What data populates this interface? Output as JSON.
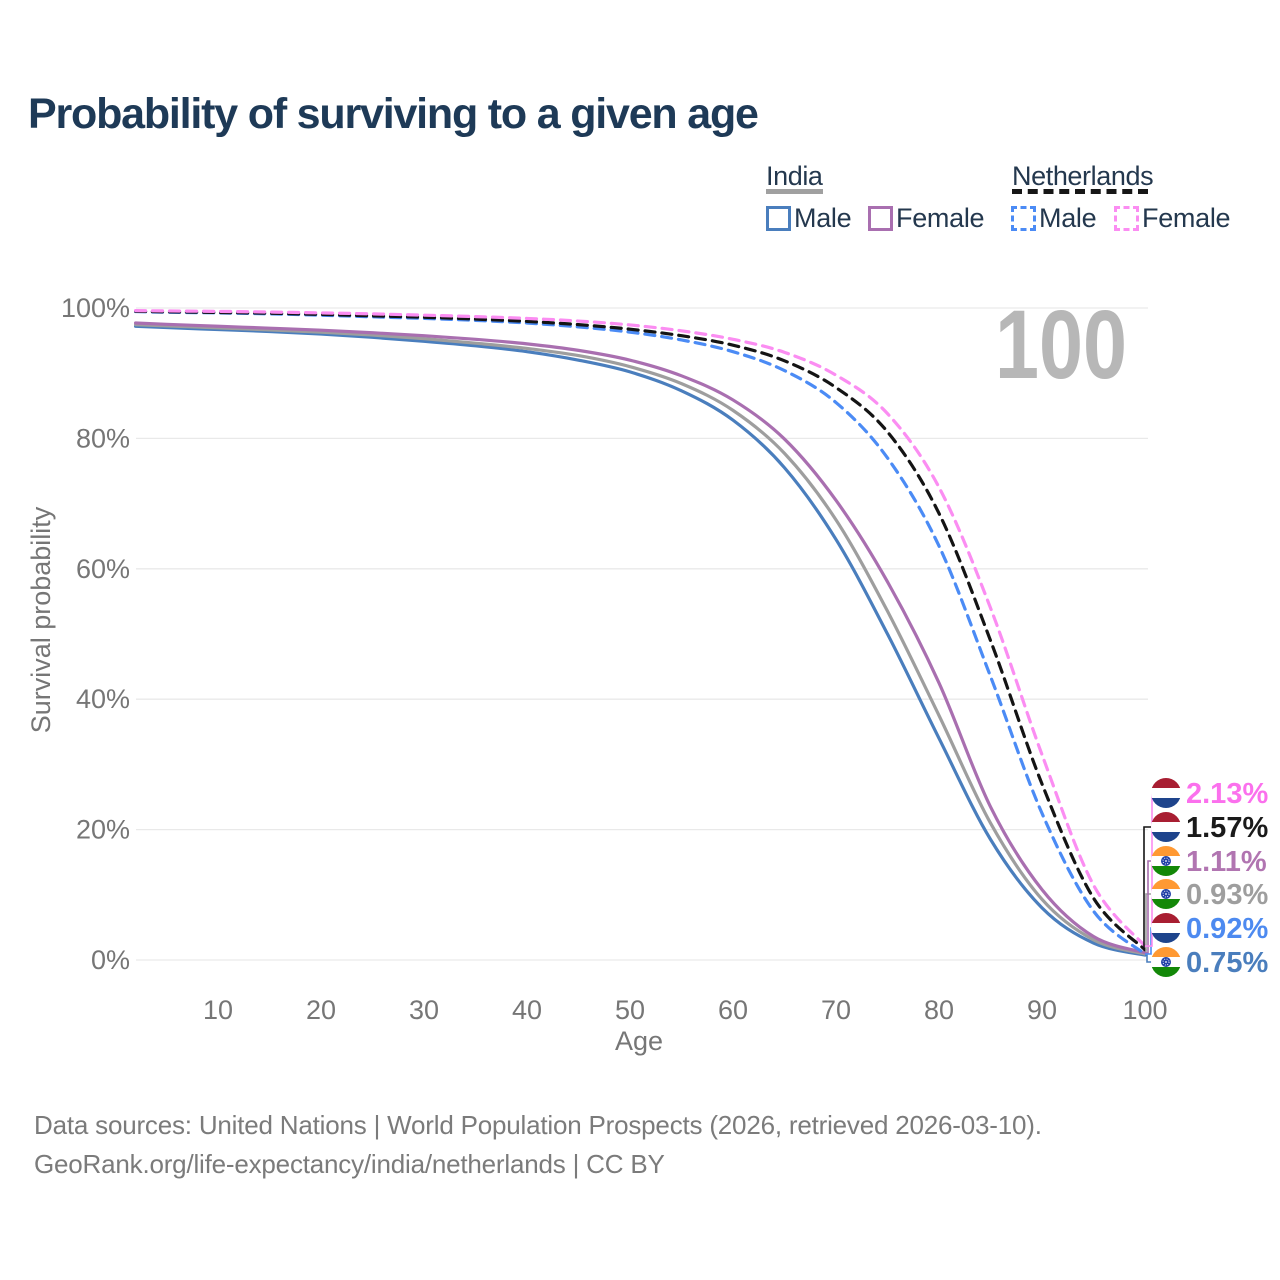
{
  "title": "Probability of surviving to a given age",
  "watermark_age": "100",
  "legend": {
    "groups": [
      {
        "label": "India",
        "line_style": "solid",
        "underline_color": "#a0a0a0",
        "items": [
          {
            "label": "Male",
            "color": "#4a7ebd"
          },
          {
            "label": "Female",
            "color": "#a96fb0"
          }
        ]
      },
      {
        "label": "Netherlands",
        "line_style": "dashed",
        "underline_color": "#161616",
        "items": [
          {
            "label": "Male",
            "color": "#4b8bf5"
          },
          {
            "label": "Female",
            "color": "#fb8df2"
          }
        ]
      }
    ]
  },
  "chart_data": {
    "type": "line",
    "title": "Probability of surviving to a given age",
    "xlabel": "Age",
    "ylabel": "Survival probability",
    "xlim": [
      0,
      100
    ],
    "ylim": [
      0,
      100
    ],
    "grid": "horizontal-only",
    "x_ticks": [
      10,
      20,
      30,
      40,
      50,
      60,
      70,
      80,
      90,
      100
    ],
    "y_ticks": [
      0,
      20,
      40,
      60,
      80,
      100
    ],
    "y_tick_labels": [
      "0%",
      "20%",
      "40%",
      "60%",
      "80%",
      "100%"
    ],
    "hover_age_indicator": "100",
    "ages": [
      2,
      5,
      10,
      15,
      20,
      25,
      30,
      35,
      40,
      45,
      50,
      55,
      60,
      65,
      70,
      75,
      80,
      85,
      90,
      95,
      100
    ],
    "series": [
      {
        "id": "india-male",
        "name": "India Male",
        "country": "India",
        "sex": "Male",
        "color": "#4a7ebd",
        "dash": false,
        "label_row": 5,
        "end_label": "0.75%",
        "end_label_color": "#4a7ebd",
        "end_value": 0.75,
        "values": [
          97.2,
          97.0,
          96.7,
          96.4,
          96.0,
          95.5,
          94.9,
          94.2,
          93.3,
          92.0,
          90.2,
          87.3,
          82.8,
          75.5,
          64.5,
          50.0,
          34.0,
          18.5,
          8.0,
          2.6,
          0.75
        ]
      },
      {
        "id": "india-all",
        "name": "India",
        "country": "India",
        "sex": "Both",
        "color": "#9e9e9e",
        "dash": false,
        "label_row": 3,
        "end_label": "0.93%",
        "end_label_color": "#9e9e9e",
        "end_value": 0.93,
        "values": [
          97.45,
          97.25,
          96.95,
          96.65,
          96.3,
          95.85,
          95.3,
          94.6,
          93.8,
          92.7,
          91.0,
          88.4,
          84.3,
          77.7,
          67.5,
          53.5,
          37.5,
          21.0,
          9.3,
          3.1,
          0.93
        ]
      },
      {
        "id": "india-female",
        "name": "India Female",
        "country": "India",
        "sex": "Female",
        "color": "#a96fb0",
        "dash": false,
        "label_row": 2,
        "end_label": "1.11%",
        "end_label_color": "#b175b1",
        "end_value": 1.11,
        "values": [
          97.7,
          97.5,
          97.2,
          96.9,
          96.6,
          96.2,
          95.75,
          95.2,
          94.5,
          93.5,
          92.0,
          89.6,
          85.9,
          79.9,
          70.5,
          58.0,
          42.5,
          23.5,
          10.8,
          3.6,
          1.11
        ]
      },
      {
        "id": "netherlands-male",
        "name": "Netherlands Male",
        "country": "Netherlands",
        "sex": "Male",
        "color": "#4b8bf5",
        "dash": true,
        "label_row": 4,
        "end_label": "0.92%",
        "end_label_color": "#4d8af0",
        "end_value": 0.92,
        "values": [
          99.45,
          99.35,
          99.25,
          99.1,
          98.9,
          98.65,
          98.4,
          98.1,
          97.7,
          97.1,
          96.3,
          95.1,
          93.3,
          90.4,
          85.5,
          77.0,
          63.5,
          43.5,
          22.5,
          7.5,
          0.92
        ]
      },
      {
        "id": "netherlands-all",
        "name": "Netherlands",
        "country": "Netherlands",
        "sex": "Both",
        "color": "#141414",
        "dash": true,
        "label_row": 1,
        "end_label": "1.57%",
        "end_label_color": "#1a1a1a",
        "end_value": 1.57,
        "values": [
          99.5,
          99.42,
          99.32,
          99.2,
          99.02,
          98.8,
          98.58,
          98.3,
          97.95,
          97.45,
          96.75,
          95.75,
          94.3,
          91.9,
          87.8,
          81.0,
          68.5,
          49.0,
          27.0,
          9.5,
          1.57
        ]
      },
      {
        "id": "netherlands-female",
        "name": "Netherlands Female",
        "country": "Netherlands",
        "sex": "Female",
        "color": "#fb8df2",
        "dash": true,
        "label_row": 0,
        "end_label": "2.13%",
        "end_label_color": "#fb70ed",
        "end_value": 2.13,
        "values": [
          99.6,
          99.55,
          99.48,
          99.38,
          99.25,
          99.1,
          98.9,
          98.68,
          98.4,
          98.0,
          97.4,
          96.5,
          95.2,
          93.2,
          89.7,
          83.8,
          72.5,
          54.0,
          31.5,
          11.5,
          2.13
        ]
      }
    ],
    "flags": {
      "India": {
        "top": "#FF9933",
        "middle": "#FFFFFF",
        "bottom": "#138808",
        "emblem": "#2242a8"
      },
      "Netherlands": {
        "top": "#A81E32",
        "middle": "#FFFFFF",
        "bottom": "#1E448C"
      }
    }
  },
  "footer": {
    "line1": "Data sources: United Nations | World Population Prospects (2026, retrieved 2026-03-10).",
    "line2": "GeoRank.org/life-expectancy/india/netherlands | CC BY"
  }
}
